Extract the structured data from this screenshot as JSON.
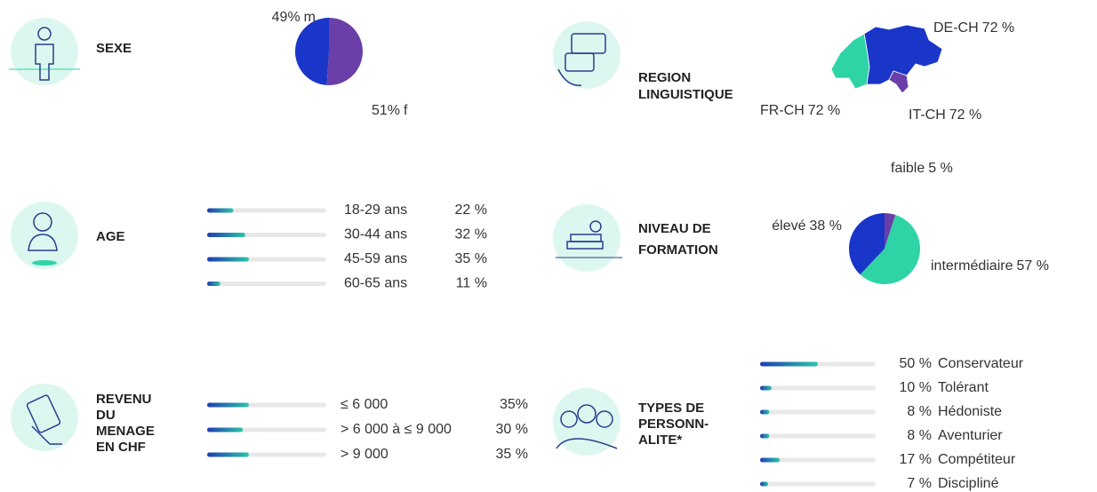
{
  "chart_data": [
    {
      "type": "pie",
      "title": [
        "SEXE"
      ],
      "categories": [
        "f",
        "m"
      ],
      "values": [
        51,
        49
      ],
      "value_labels": [
        "51%",
        "49%"
      ],
      "colors": [
        "#6a3fa8",
        "#1a36c8"
      ]
    },
    {
      "type": "map",
      "title": [
        "REGION",
        "LINGUISTIQUE"
      ],
      "categories": [
        "DE-CH",
        "FR-CH",
        "IT-CH"
      ],
      "values": [
        72,
        72,
        72
      ],
      "value_labels": [
        "72 %",
        "72 %",
        "72 %"
      ],
      "colors": [
        "#1a36c8",
        "#2ed3a6",
        "#6a3fa8"
      ]
    },
    {
      "type": "bar",
      "title": [
        "AGE"
      ],
      "categories": [
        "18-29 ans",
        "30-44 ans",
        "45-59 ans",
        "60-65 ans"
      ],
      "values": [
        22,
        32,
        35,
        11
      ],
      "value_labels": [
        "22 %",
        "32 %",
        "35 %",
        "11 %"
      ],
      "xlim": [
        0,
        100
      ]
    },
    {
      "type": "pie",
      "title": [
        "NIVEAU DE",
        "FORMATION"
      ],
      "categories": [
        "faible",
        "intermédiaire",
        "élevé"
      ],
      "values": [
        5,
        57,
        38
      ],
      "value_labels": [
        "5 %",
        "57 %",
        "38 %"
      ],
      "colors": [
        "#6a3fa8",
        "#2ed3a6",
        "#1a36c8"
      ]
    },
    {
      "type": "bar",
      "title": [
        "REVENU",
        "DU",
        "MENAGE",
        "EN CHF"
      ],
      "categories": [
        "≤ 6 000",
        "> 6 000 à ≤ 9 000",
        "> 9 000"
      ],
      "values": [
        35,
        30,
        35
      ],
      "value_labels": [
        "35%",
        "30 %",
        "35 %"
      ],
      "xlim": [
        0,
        100
      ]
    },
    {
      "type": "bar",
      "title": [
        "TYPES DE",
        "PERSONN-",
        "ALITE*"
      ],
      "categories": [
        "Conservateur",
        "Tolérant",
        "Hédoniste",
        "Aventurier",
        "Compétiteur",
        "Discipliné"
      ],
      "values": [
        50,
        10,
        8,
        8,
        17,
        7
      ],
      "value_labels": [
        "50 %",
        "10 %",
        "8 %",
        "8 %",
        "17 %",
        "7 %"
      ],
      "xlim": [
        0,
        100
      ]
    }
  ]
}
